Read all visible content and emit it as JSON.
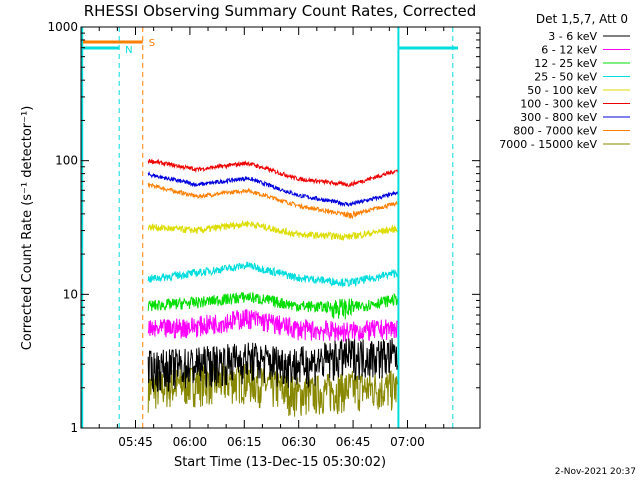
{
  "chart_data": {
    "type": "line",
    "title": "RHESSI Observing Summary Count Rates, Corrected",
    "xlabel": "Start Time (13-Dec-15 05:30:02)",
    "ylabel": "Corrected Count Rate (s⁻¹ detector⁻¹)",
    "yscale": "log",
    "ylim": [
      1,
      1000
    ],
    "xlim_min": [
      -0.03,
      110
    ],
    "x_ticks": [
      {
        "min": 15,
        "label": "05:45"
      },
      {
        "min": 30,
        "label": "06:00"
      },
      {
        "min": 45,
        "label": "06:15"
      },
      {
        "min": 60,
        "label": "06:30"
      },
      {
        "min": 75,
        "label": "06:45"
      },
      {
        "min": 90,
        "label": "07:00"
      }
    ],
    "y_ticks": [
      {
        "value": 1,
        "label": "1"
      },
      {
        "value": 10,
        "label": "10"
      },
      {
        "value": 100,
        "label": "100"
      },
      {
        "value": 1000,
        "label": "1000"
      }
    ],
    "legend_title": "Det 1,5,7, Att 0",
    "legend_placement": "right, outside plot",
    "series": [
      {
        "name": "3 - 6 keV",
        "color": "#000000",
        "x_min": [
          18.5,
          32,
          46,
          60,
          74,
          87
        ],
        "values": [
          2.8,
          3.0,
          3.3,
          3.0,
          3.5,
          3.5
        ]
      },
      {
        "name": "6 - 12 keV",
        "color": "#ff00ff",
        "x_min": [
          18.5,
          32,
          46,
          60,
          74,
          87
        ],
        "values": [
          5.4,
          5.8,
          6.7,
          5.5,
          5.3,
          5.6
        ]
      },
      {
        "name": "12 - 25 keV",
        "color": "#00dd00",
        "x_min": [
          18.5,
          32,
          46,
          60,
          74,
          87
        ],
        "values": [
          8.2,
          8.7,
          9.6,
          8.2,
          7.9,
          9.2
        ]
      },
      {
        "name": "25 - 50 keV",
        "color": "#00dddd",
        "x_min": [
          18.5,
          32,
          46,
          60,
          74,
          87
        ],
        "values": [
          13.0,
          14.5,
          16.5,
          13.3,
          12.2,
          14.5
        ]
      },
      {
        "name": "50 - 100 keV",
        "color": "#dddd00",
        "x_min": [
          18.5,
          32,
          46,
          60,
          74,
          87
        ],
        "values": [
          32,
          30,
          34,
          28,
          27,
          31
        ]
      },
      {
        "name": "100 - 300 keV",
        "color": "#ee0000",
        "x_min": [
          18.5,
          32,
          46,
          60,
          74,
          87
        ],
        "values": [
          100,
          86,
          96,
          73,
          66,
          84
        ]
      },
      {
        "name": "300 - 800 keV",
        "color": "#0000dd",
        "x_min": [
          18.5,
          32,
          46,
          60,
          74,
          87
        ],
        "values": [
          79,
          66,
          74,
          55,
          47,
          57
        ]
      },
      {
        "name": "800 - 7000 keV",
        "color": "#ff7f00",
        "x_min": [
          18.5,
          32,
          46,
          60,
          74,
          87
        ],
        "values": [
          66,
          54,
          60,
          46,
          39,
          48
        ]
      },
      {
        "name": "7000 - 15000 keV",
        "color": "#888800",
        "x_min": [
          18.5,
          32,
          46,
          60,
          74,
          87
        ],
        "values": [
          2.0,
          2.2,
          2.3,
          1.8,
          2.0,
          2.0
        ]
      }
    ],
    "annotations": [
      {
        "label": "S",
        "color": "#ff7f00",
        "x_min": 17.0
      },
      {
        "label": "N",
        "color": "#00dddd",
        "x_min": 10.5
      }
    ],
    "footer": "2-Nov-2021 20:37"
  }
}
